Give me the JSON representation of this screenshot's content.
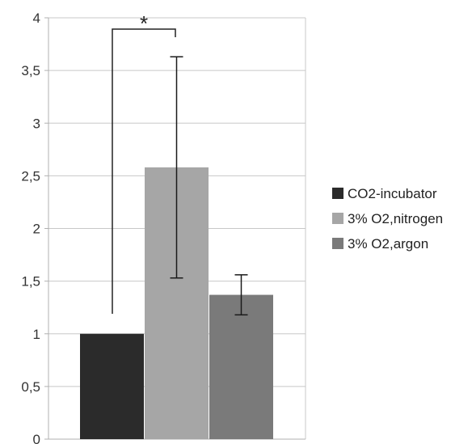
{
  "chart_data": {
    "type": "bar",
    "title": "",
    "xlabel": "",
    "ylabel": "",
    "ylim": [
      0,
      4
    ],
    "yticks": [
      {
        "value": 0,
        "label": "0"
      },
      {
        "value": 0.5,
        "label": "0,5"
      },
      {
        "value": 1,
        "label": "1"
      },
      {
        "value": 1.5,
        "label": "1,5"
      },
      {
        "value": 2,
        "label": "2"
      },
      {
        "value": 2.5,
        "label": "2,5"
      },
      {
        "value": 3,
        "label": "3"
      },
      {
        "value": 3.5,
        "label": "3,5"
      },
      {
        "value": 4,
        "label": "4"
      }
    ],
    "grid": true,
    "legend_position": "right",
    "series": [
      {
        "name": "CO2-incubator",
        "value": 1.0,
        "error_low": null,
        "error_high": null,
        "color": "#2b2b2b"
      },
      {
        "name": "3% O2,nitrogen",
        "value": 2.58,
        "error_low": 1.53,
        "error_high": 3.63,
        "color": "#a6a6a6"
      },
      {
        "name": "3% O2,argon",
        "value": 1.37,
        "error_low": 1.18,
        "error_high": 1.56,
        "color": "#7a7a7a"
      }
    ],
    "significance": {
      "label": "*",
      "from_series": 0,
      "to_series": 1,
      "y": 4.0
    }
  }
}
